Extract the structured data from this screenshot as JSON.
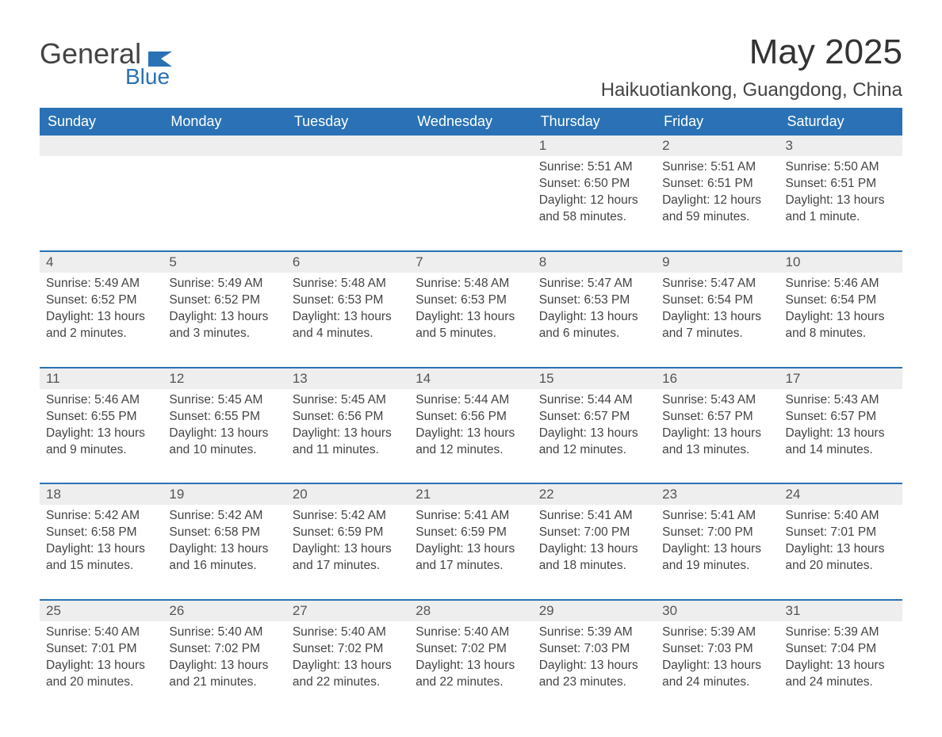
{
  "logo": {
    "word1": "General",
    "word2": "Blue"
  },
  "title": "May 2025",
  "location": "Haikuotiankong, Guangdong, China",
  "colors": {
    "brand_blue": "#2a72b5",
    "header_text": "#ffffff",
    "row_stripe": "#eeeeee",
    "body_text": "#444444",
    "bg": "#ffffff"
  },
  "weekdays": [
    "Sunday",
    "Monday",
    "Tuesday",
    "Wednesday",
    "Thursday",
    "Friday",
    "Saturday"
  ],
  "labels": {
    "sunrise": "Sunrise:",
    "sunset": "Sunset:",
    "daylight": "Daylight:"
  },
  "weeks": [
    [
      null,
      null,
      null,
      null,
      {
        "d": "1",
        "sr": "5:51 AM",
        "ss": "6:50 PM",
        "dl": "12 hours and 58 minutes."
      },
      {
        "d": "2",
        "sr": "5:51 AM",
        "ss": "6:51 PM",
        "dl": "12 hours and 59 minutes."
      },
      {
        "d": "3",
        "sr": "5:50 AM",
        "ss": "6:51 PM",
        "dl": "13 hours and 1 minute."
      }
    ],
    [
      {
        "d": "4",
        "sr": "5:49 AM",
        "ss": "6:52 PM",
        "dl": "13 hours and 2 minutes."
      },
      {
        "d": "5",
        "sr": "5:49 AM",
        "ss": "6:52 PM",
        "dl": "13 hours and 3 minutes."
      },
      {
        "d": "6",
        "sr": "5:48 AM",
        "ss": "6:53 PM",
        "dl": "13 hours and 4 minutes."
      },
      {
        "d": "7",
        "sr": "5:48 AM",
        "ss": "6:53 PM",
        "dl": "13 hours and 5 minutes."
      },
      {
        "d": "8",
        "sr": "5:47 AM",
        "ss": "6:53 PM",
        "dl": "13 hours and 6 minutes."
      },
      {
        "d": "9",
        "sr": "5:47 AM",
        "ss": "6:54 PM",
        "dl": "13 hours and 7 minutes."
      },
      {
        "d": "10",
        "sr": "5:46 AM",
        "ss": "6:54 PM",
        "dl": "13 hours and 8 minutes."
      }
    ],
    [
      {
        "d": "11",
        "sr": "5:46 AM",
        "ss": "6:55 PM",
        "dl": "13 hours and 9 minutes."
      },
      {
        "d": "12",
        "sr": "5:45 AM",
        "ss": "6:55 PM",
        "dl": "13 hours and 10 minutes."
      },
      {
        "d": "13",
        "sr": "5:45 AM",
        "ss": "6:56 PM",
        "dl": "13 hours and 11 minutes."
      },
      {
        "d": "14",
        "sr": "5:44 AM",
        "ss": "6:56 PM",
        "dl": "13 hours and 12 minutes."
      },
      {
        "d": "15",
        "sr": "5:44 AM",
        "ss": "6:57 PM",
        "dl": "13 hours and 12 minutes."
      },
      {
        "d": "16",
        "sr": "5:43 AM",
        "ss": "6:57 PM",
        "dl": "13 hours and 13 minutes."
      },
      {
        "d": "17",
        "sr": "5:43 AM",
        "ss": "6:57 PM",
        "dl": "13 hours and 14 minutes."
      }
    ],
    [
      {
        "d": "18",
        "sr": "5:42 AM",
        "ss": "6:58 PM",
        "dl": "13 hours and 15 minutes."
      },
      {
        "d": "19",
        "sr": "5:42 AM",
        "ss": "6:58 PM",
        "dl": "13 hours and 16 minutes."
      },
      {
        "d": "20",
        "sr": "5:42 AM",
        "ss": "6:59 PM",
        "dl": "13 hours and 17 minutes."
      },
      {
        "d": "21",
        "sr": "5:41 AM",
        "ss": "6:59 PM",
        "dl": "13 hours and 17 minutes."
      },
      {
        "d": "22",
        "sr": "5:41 AM",
        "ss": "7:00 PM",
        "dl": "13 hours and 18 minutes."
      },
      {
        "d": "23",
        "sr": "5:41 AM",
        "ss": "7:00 PM",
        "dl": "13 hours and 19 minutes."
      },
      {
        "d": "24",
        "sr": "5:40 AM",
        "ss": "7:01 PM",
        "dl": "13 hours and 20 minutes."
      }
    ],
    [
      {
        "d": "25",
        "sr": "5:40 AM",
        "ss": "7:01 PM",
        "dl": "13 hours and 20 minutes."
      },
      {
        "d": "26",
        "sr": "5:40 AM",
        "ss": "7:02 PM",
        "dl": "13 hours and 21 minutes."
      },
      {
        "d": "27",
        "sr": "5:40 AM",
        "ss": "7:02 PM",
        "dl": "13 hours and 22 minutes."
      },
      {
        "d": "28",
        "sr": "5:40 AM",
        "ss": "7:02 PM",
        "dl": "13 hours and 22 minutes."
      },
      {
        "d": "29",
        "sr": "5:39 AM",
        "ss": "7:03 PM",
        "dl": "13 hours and 23 minutes."
      },
      {
        "d": "30",
        "sr": "5:39 AM",
        "ss": "7:03 PM",
        "dl": "13 hours and 24 minutes."
      },
      {
        "d": "31",
        "sr": "5:39 AM",
        "ss": "7:04 PM",
        "dl": "13 hours and 24 minutes."
      }
    ]
  ]
}
